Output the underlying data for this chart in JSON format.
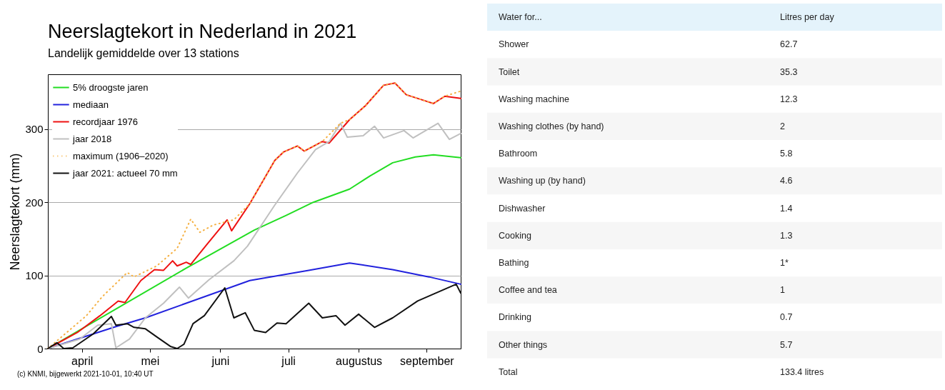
{
  "chart_data": [
    {
      "type": "line",
      "title": "Neerslagtekort in Nederland in 2021",
      "subtitle": "Landelijk gemiddelde over 13 stations",
      "ylabel": "Neerslagtekort (mm)",
      "annotations": [
        "(c) KNMI, bijgewerkt 2021-10-01, 10:40 UT"
      ],
      "xlim": [
        "--04-01",
        "--09-30"
      ],
      "xticks": [
        {
          "value": "--04-16",
          "label": "april"
        },
        {
          "value": "--05-16",
          "label": "mei"
        },
        {
          "value": "--06-16",
          "label": "juni"
        },
        {
          "value": "--07-16",
          "label": "juli"
        },
        {
          "value": "--08-16",
          "label": "augustus"
        },
        {
          "value": "--09-15",
          "label": "september"
        }
      ],
      "ylim": [
        0,
        375
      ],
      "yticks": [
        0,
        100,
        200,
        300
      ],
      "grid": "y",
      "legend": "top left",
      "series": [
        {
          "name": "5% droogste jaren",
          "color": "#22dd22",
          "x": [
            "--04-01",
            "--05-01",
            "--06-01",
            "--07-01",
            "--07-15",
            "--07-27",
            "--08-12",
            "--08-21",
            "--08-31",
            "--09-10",
            "--09-18",
            "--09-30"
          ],
          "values": [
            0,
            54,
            110,
            162,
            182,
            200,
            218,
            236,
            254,
            262,
            265,
            261
          ]
        },
        {
          "name": "mediaan",
          "color": "#2222dd",
          "x": [
            "--04-01",
            "--05-01",
            "--05-14",
            "--06-01",
            "--06-29",
            "--07-25",
            "--08-12",
            "--08-31",
            "--09-16",
            "--09-30"
          ],
          "values": [
            0,
            30,
            42,
            62,
            93,
            107,
            117,
            108,
            98,
            88
          ]
        },
        {
          "name": "recordjaar 1976",
          "color": "#ee1111",
          "x": [
            "--04-01",
            "--04-14",
            "--04-24",
            "--05-02",
            "--05-05",
            "--05-12",
            "--05-18",
            "--05-22",
            "--05-26",
            "--05-28",
            "--06-01",
            "--06-03",
            "--06-10",
            "--06-19",
            "--06-21",
            "--06-29",
            "--07-10",
            "--07-14",
            "--07-20",
            "--07-23",
            "--07-31",
            "--08-03",
            "--08-12",
            "--08-19",
            "--08-27",
            "--09-01",
            "--09-06",
            "--09-15",
            "--09-18",
            "--09-23",
            "--09-30"
          ],
          "values": [
            0,
            22,
            45,
            65,
            63,
            93,
            108,
            107,
            120,
            113,
            118,
            115,
            142,
            176,
            161,
            198,
            257,
            269,
            277,
            270,
            283,
            281,
            313,
            332,
            360,
            363,
            347,
            338,
            335,
            345,
            342
          ]
        },
        {
          "name": "jaar 2018",
          "color": "#c0c0c0",
          "x": [
            "--04-01",
            "--04-15",
            "--04-23",
            "--04-29",
            "--05-01",
            "--05-07",
            "--05-14",
            "--05-22",
            "--05-29",
            "--06-02",
            "--06-11",
            "--06-22",
            "--06-28",
            "--07-10",
            "--07-20",
            "--07-28",
            "--08-03",
            "--08-08",
            "--08-11",
            "--08-18",
            "--08-23",
            "--08-27",
            "--09-05",
            "--09-09",
            "--09-20",
            "--09-25",
            "--09-30"
          ],
          "values": [
            0,
            13,
            32,
            34,
            1,
            13,
            42,
            62,
            84,
            69,
            94,
            120,
            140,
            196,
            240,
            272,
            283,
            308,
            289,
            291,
            304,
            288,
            298,
            288,
            308,
            286,
            294
          ]
        },
        {
          "name": "maximum (1906–2020)",
          "color": "#f5b041",
          "line_style": "dotted",
          "x": [
            "--04-01",
            "--04-18",
            "--04-25",
            "--05-06",
            "--05-09",
            "--05-19",
            "--05-28",
            "--06-03",
            "--06-07",
            "--06-13",
            "--06-22",
            "--06-29",
            "--07-10",
            "--07-14",
            "--07-20",
            "--07-23",
            "--07-31",
            "--08-08",
            "--08-12",
            "--08-19",
            "--08-27",
            "--09-01",
            "--09-06",
            "--09-15",
            "--09-18",
            "--09-23",
            "--09-30"
          ],
          "values": [
            0,
            45,
            71,
            104,
            98,
            113,
            137,
            177,
            159,
            169,
            176,
            198,
            257,
            269,
            277,
            270,
            283,
            308,
            313,
            332,
            360,
            363,
            347,
            338,
            335,
            345,
            352
          ]
        },
        {
          "name": "jaar 2021: actueel 70 mm",
          "color": "#111111",
          "x": [
            "--04-01",
            "--04-05",
            "--04-08",
            "--04-12",
            "--04-21",
            "--04-29",
            "--05-01",
            "--05-06",
            "--05-09",
            "--05-14",
            "--05-19",
            "--05-25",
            "--05-28",
            "--05-31",
            "--06-04",
            "--06-09",
            "--06-18",
            "--06-22",
            "--06-27",
            "--07-01",
            "--07-06",
            "--07-11",
            "--07-15",
            "--07-25",
            "--07-31",
            "--08-06",
            "--08-10",
            "--08-16",
            "--08-23",
            "--08-31",
            "--09-11",
            "--09-28",
            "--09-30"
          ],
          "values": [
            0,
            8,
            0,
            1,
            20,
            44,
            32,
            34,
            29,
            27,
            16,
            3,
            0,
            6,
            34,
            45,
            83,
            42,
            49,
            25,
            22,
            35,
            34,
            62,
            42,
            45,
            32,
            47,
            29,
            42,
            65,
            88,
            76
          ]
        }
      ]
    },
    {
      "type": "other",
      "xlabel": "Water for...",
      "ylabel": "Litres per day",
      "categories": [
        "Shower",
        "Toilet",
        "Washing machine",
        "Washing clothes (by hand)",
        "Bathroom",
        "Washing up (by hand)",
        "Dishwasher",
        "Cooking",
        "Bathing",
        "Coffee and tea",
        "Drinking",
        "Other things",
        "Total"
      ],
      "value_labels": [
        "62.7",
        "35.3",
        "12.3",
        "2",
        "5.8",
        "4.6",
        "1.4",
        "1.3",
        "1*",
        "1",
        "0.7",
        "5.7",
        "133.4 litres"
      ]
    }
  ]
}
